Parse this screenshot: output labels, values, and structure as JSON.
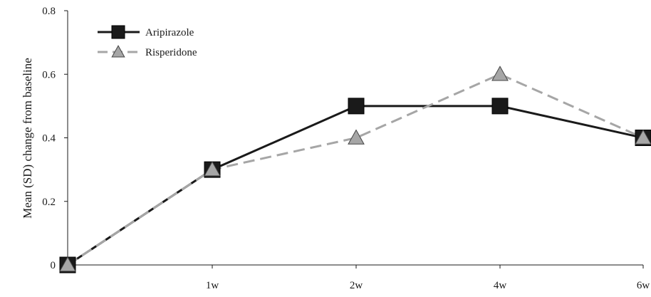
{
  "chart_data": {
    "type": "line",
    "categories": [
      "",
      "1w",
      "2w",
      "4w",
      "6w"
    ],
    "ylabel": "Mean (SD) change from baseline",
    "xlabel": "",
    "ylim": [
      0,
      0.8
    ],
    "yticks": [
      "0",
      "0.2",
      "0.4",
      "0.6",
      "0.8"
    ],
    "grid": false,
    "legend_position": "top-left",
    "series": [
      {
        "name": "Aripirazole",
        "values": [
          0,
          0.3,
          0.5,
          0.5,
          0.4
        ],
        "color": "#1a1a1a",
        "marker": "square",
        "line_style": "solid"
      },
      {
        "name": "Risperidone",
        "values": [
          0,
          0.3,
          0.4,
          0.6,
          0.4
        ],
        "color": "#a6a6a6",
        "marker": "triangle",
        "line_style": "dashed"
      }
    ]
  }
}
